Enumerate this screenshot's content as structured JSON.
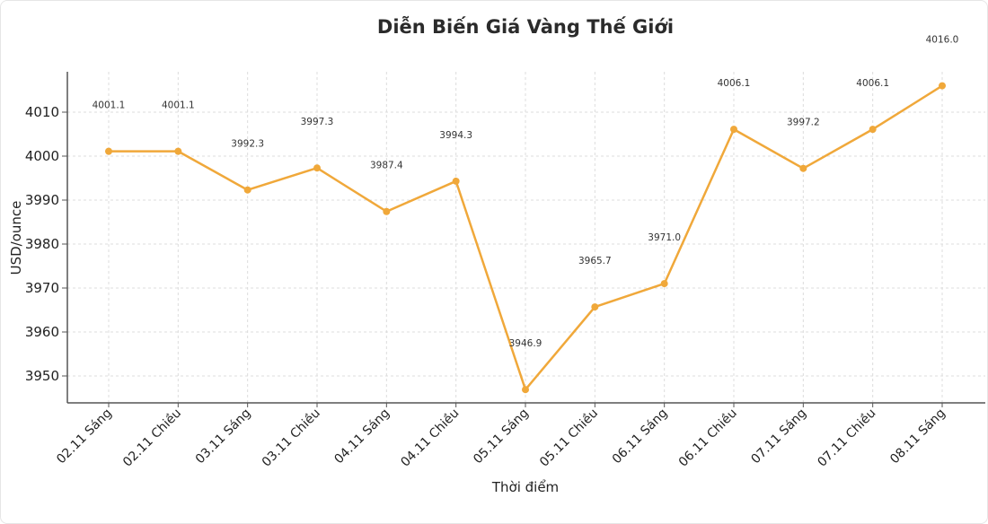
{
  "chart_data": {
    "type": "line",
    "title": "Diễn Biến Giá Vàng Thế Giới",
    "xlabel": "Thời điểm",
    "ylabel": "USD/ounce",
    "categories": [
      "02.11 Sáng",
      "02.11 Chiều",
      "03.11 Sáng",
      "03.11 Chiều",
      "04.11 Sáng",
      "04.11 Chiều",
      "05.11 Sáng",
      "05.11 Chiều",
      "06.11 Sáng",
      "06.11 Chiều",
      "07.11 Sáng",
      "07.11 Chiều",
      "08.11 Sáng"
    ],
    "values": [
      4001.1,
      4001.1,
      3992.3,
      3997.3,
      3987.4,
      3994.3,
      3946.9,
      3965.7,
      3971.0,
      4006.1,
      3997.2,
      4006.1,
      4016.0
    ],
    "data_labels": [
      "4001.1",
      "4001.1",
      "3992.3",
      "3997.3",
      "3987.4",
      "3994.3",
      "3946.9",
      "3965.7",
      "3971.0",
      "4006.1",
      "3997.2",
      "4006.1",
      "4016.0"
    ],
    "yticks": [
      3950,
      3960,
      3970,
      3980,
      3990,
      4000,
      4010
    ],
    "ylim": [
      3943.5,
      4019
    ],
    "grid": true,
    "line_color": "#f0a83a",
    "legend": null
  }
}
